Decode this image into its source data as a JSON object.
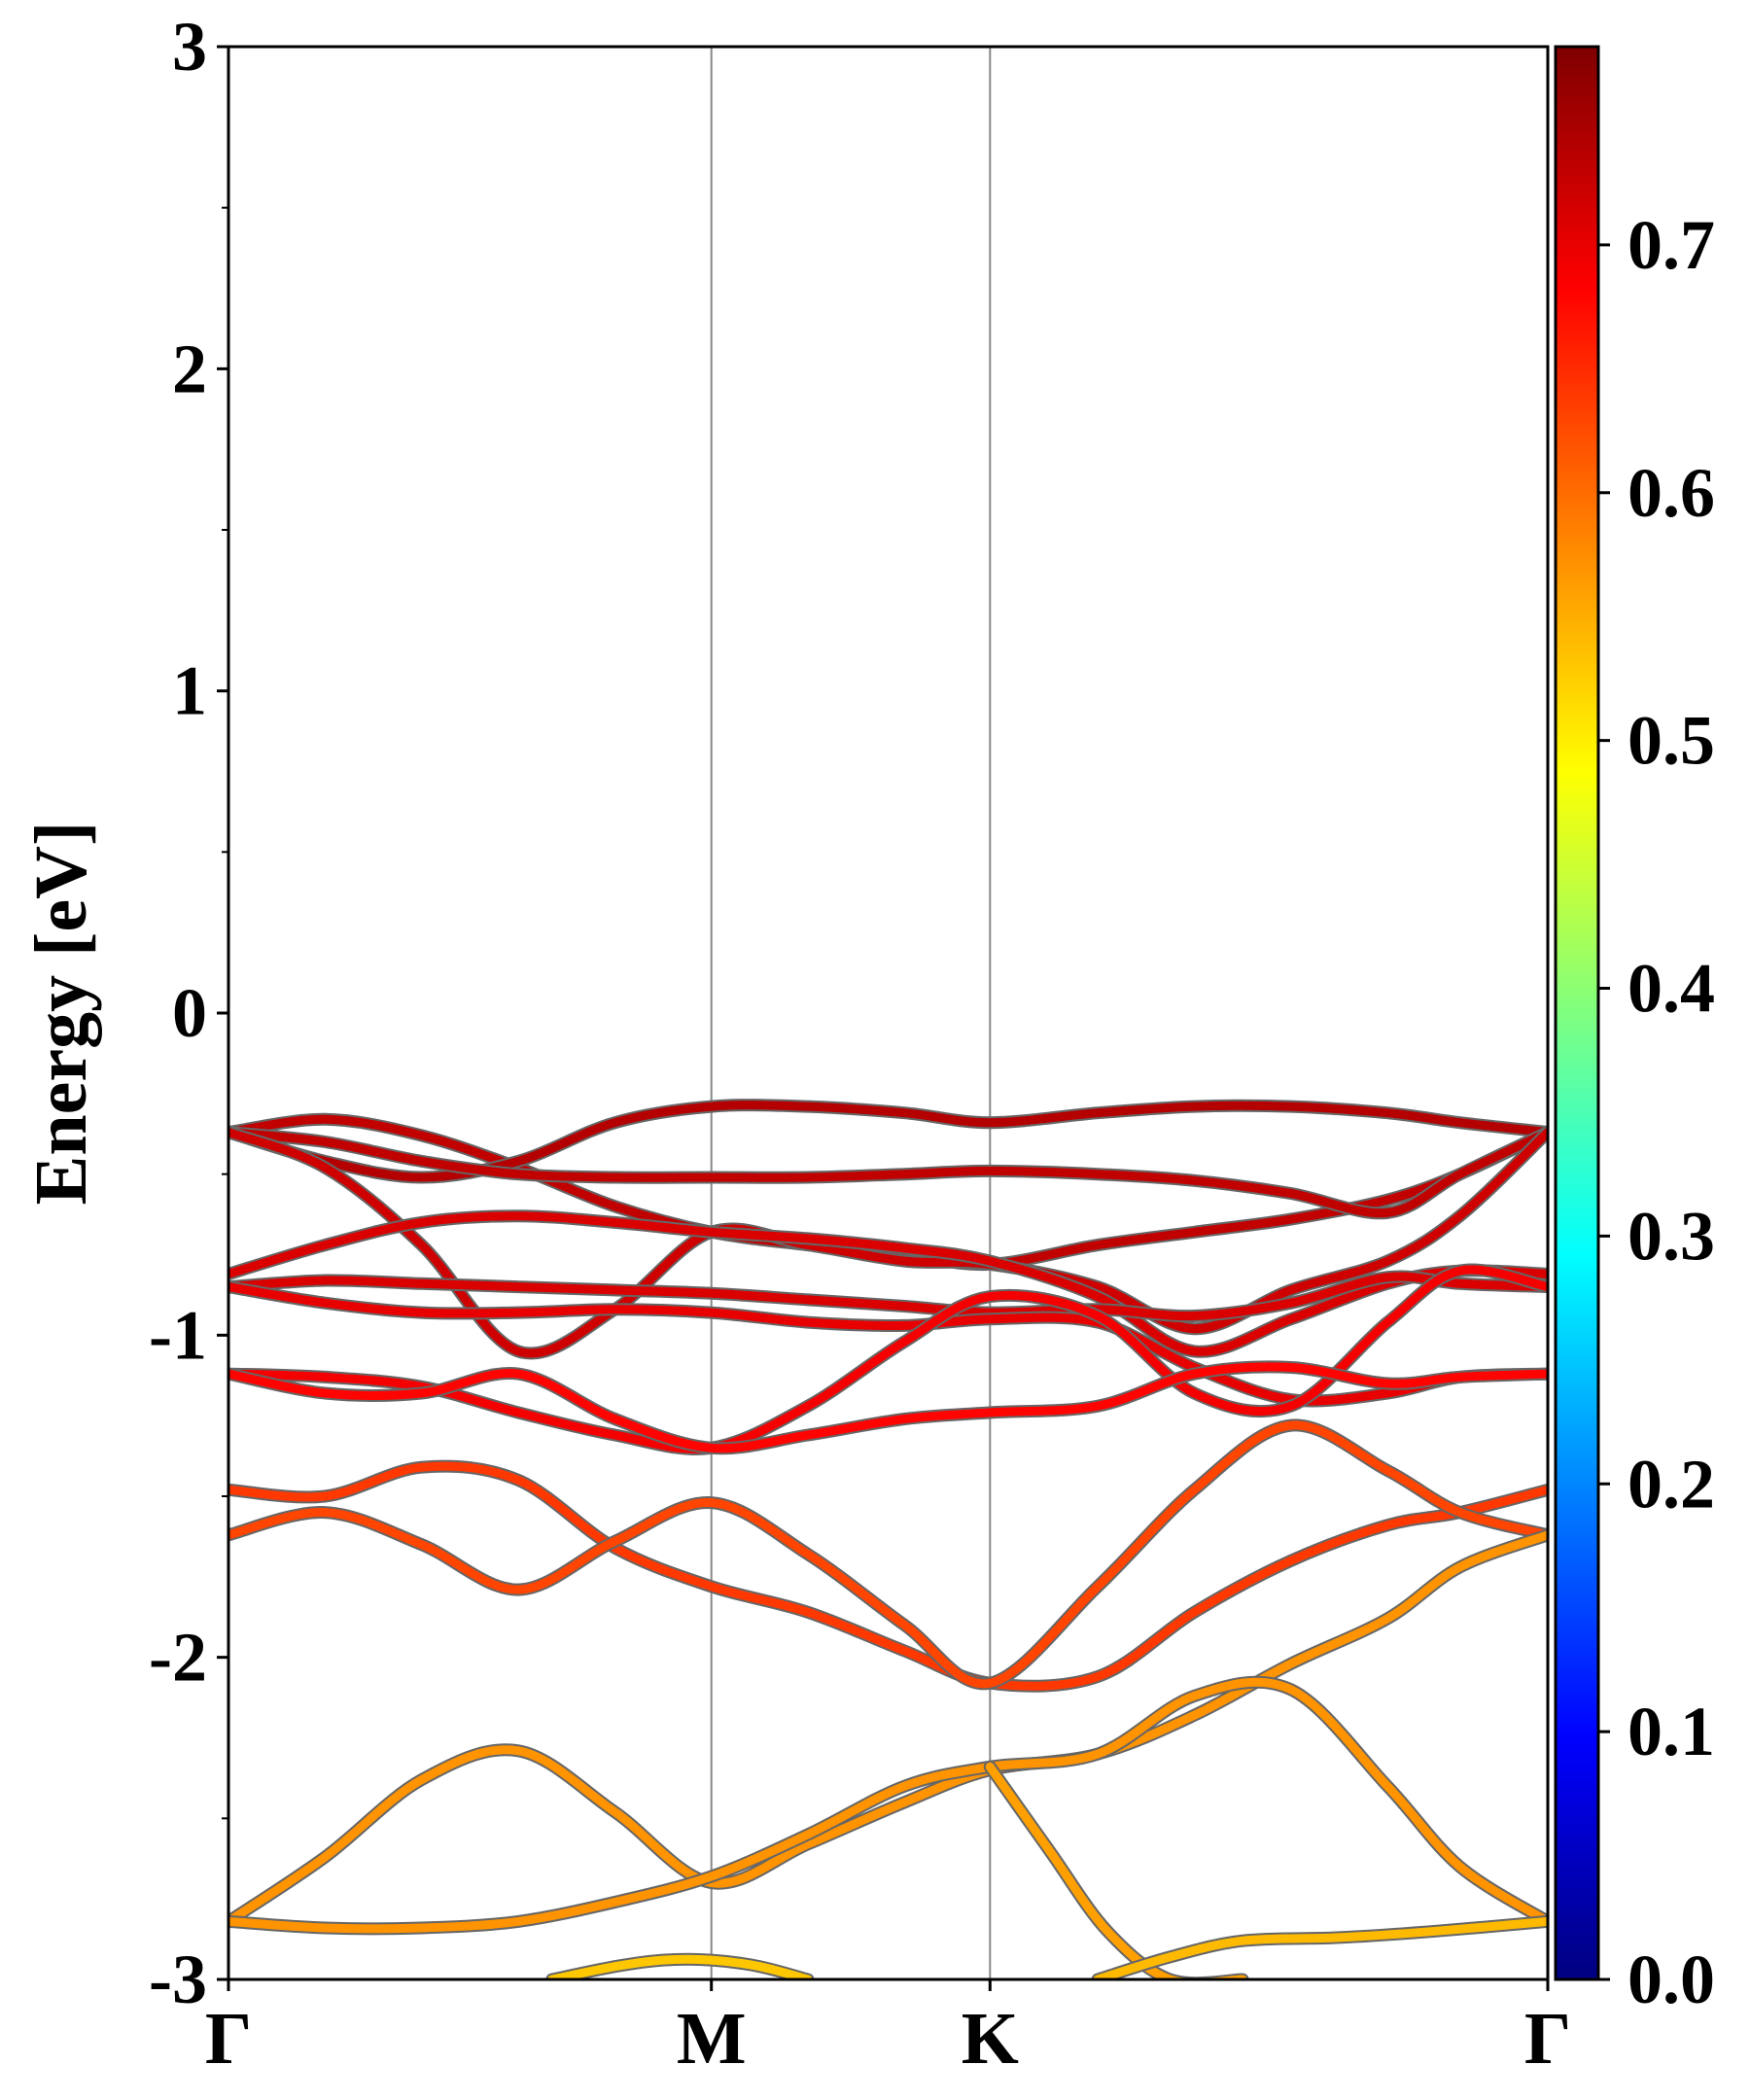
{
  "chart_data": {
    "type": "line",
    "ylabel": "Energy [eV]",
    "xlabel": "",
    "title": "",
    "ylim": [
      -3,
      3
    ],
    "y_ticks": [
      "-3",
      "-2",
      "-1",
      "0",
      "1",
      "2",
      "3"
    ],
    "k_labels": [
      "Γ",
      "M",
      "K",
      "Γ"
    ],
    "k_positions": [
      0.0,
      1.0,
      1.577,
      2.732
    ],
    "xlim": [
      0.0,
      2.732
    ],
    "colorbar": {
      "colormap": "jet",
      "range": [
        0.0,
        0.78
      ],
      "ticks": [
        "0.0",
        "0.1",
        "0.2",
        "0.3",
        "0.4",
        "0.5",
        "0.6",
        "0.7"
      ]
    },
    "series": [
      {
        "x": [
          0,
          0.2,
          0.4,
          0.6,
          0.8,
          1.0,
          1.2,
          1.4,
          1.577,
          1.8,
          2.0,
          2.2,
          2.4,
          2.55,
          2.732
        ],
        "y": [
          -0.37,
          -0.33,
          -0.38,
          -0.48,
          -0.6,
          -0.68,
          -0.72,
          -0.75,
          -0.78,
          -0.72,
          -0.68,
          -0.64,
          -0.58,
          -0.5,
          -0.37
        ],
        "weight": 0.73
      },
      {
        "x": [
          0,
          0.2,
          0.4,
          0.6,
          0.8,
          1.0,
          1.2,
          1.4,
          1.577,
          1.8,
          2.0,
          2.2,
          2.4,
          2.55,
          2.732
        ],
        "y": [
          -0.37,
          -0.46,
          -0.51,
          -0.46,
          -0.34,
          -0.29,
          -0.29,
          -0.31,
          -0.34,
          -0.31,
          -0.29,
          -0.29,
          -0.31,
          -0.34,
          -0.37
        ],
        "weight": 0.74
      },
      {
        "x": [
          0,
          0.2,
          0.4,
          0.6,
          0.8,
          1.0,
          1.2,
          1.4,
          1.577,
          1.8,
          2.0,
          2.2,
          2.4,
          2.55,
          2.732
        ],
        "y": [
          -0.37,
          -0.4,
          -0.46,
          -0.5,
          -0.51,
          -0.51,
          -0.51,
          -0.5,
          -0.49,
          -0.5,
          -0.52,
          -0.56,
          -0.62,
          -0.5,
          -0.37
        ],
        "weight": 0.73
      },
      {
        "x": [
          0,
          0.2,
          0.4,
          0.6,
          0.8,
          1.0,
          1.2,
          1.4,
          1.577,
          1.8,
          2.0,
          2.2,
          2.4,
          2.55,
          2.732
        ],
        "y": [
          -0.37,
          -0.48,
          -0.72,
          -1.05,
          -0.92,
          -0.68,
          -0.72,
          -0.77,
          -0.78,
          -0.85,
          -0.98,
          -0.86,
          -0.77,
          -0.63,
          -0.37
        ],
        "weight": 0.72
      },
      {
        "x": [
          0,
          0.2,
          0.4,
          0.6,
          0.8,
          1.0,
          1.2,
          1.4,
          1.577,
          1.8,
          2.0,
          2.2,
          2.4,
          2.55,
          2.732
        ],
        "y": [
          -0.81,
          -0.72,
          -0.65,
          -0.63,
          -0.65,
          -0.68,
          -0.7,
          -0.73,
          -0.77,
          -0.88,
          -1.05,
          -0.95,
          -0.84,
          -0.8,
          -0.81
        ],
        "weight": 0.71
      },
      {
        "x": [
          0,
          0.2,
          0.4,
          0.6,
          0.8,
          1.0,
          1.2,
          1.4,
          1.577,
          1.8,
          2.0,
          2.2,
          2.4,
          2.55,
          2.732
        ],
        "y": [
          -0.85,
          -0.83,
          -0.84,
          -0.85,
          -0.86,
          -0.87,
          -0.89,
          -0.91,
          -0.93,
          -0.92,
          -0.94,
          -0.9,
          -0.82,
          -0.84,
          -0.85
        ],
        "weight": 0.71
      },
      {
        "x": [
          0,
          0.2,
          0.4,
          0.6,
          0.8,
          1.0,
          1.2,
          1.4,
          1.577,
          1.8,
          2.0,
          2.2,
          2.4,
          2.55,
          2.732
        ],
        "y": [
          -0.85,
          -0.9,
          -0.93,
          -0.93,
          -0.92,
          -0.93,
          -0.96,
          -0.97,
          -0.95,
          -0.96,
          -1.1,
          -1.2,
          -1.18,
          -1.13,
          -1.12
        ],
        "weight": 0.7
      },
      {
        "x": [
          0,
          0.2,
          0.4,
          0.6,
          0.8,
          1.0,
          1.2,
          1.4,
          1.577,
          1.8,
          2.0,
          2.2,
          2.4,
          2.55,
          2.732
        ],
        "y": [
          -1.12,
          -1.13,
          -1.16,
          -1.24,
          -1.31,
          -1.35,
          -1.22,
          -1.02,
          -0.88,
          -0.94,
          -1.18,
          -1.22,
          -0.96,
          -0.8,
          -0.85
        ],
        "weight": 0.69
      },
      {
        "x": [
          0,
          0.2,
          0.4,
          0.6,
          0.8,
          1.0,
          1.2,
          1.4,
          1.577,
          1.8,
          2.0,
          2.2,
          2.4,
          2.55,
          2.732
        ],
        "y": [
          -1.12,
          -1.18,
          -1.18,
          -1.12,
          -1.26,
          -1.35,
          -1.31,
          -1.26,
          -1.24,
          -1.22,
          -1.12,
          -1.1,
          -1.15,
          -1.13,
          -1.12
        ],
        "weight": 0.68
      },
      {
        "x": [
          0,
          0.2,
          0.4,
          0.6,
          0.8,
          1.0,
          1.2,
          1.4,
          1.577,
          1.8,
          2.0,
          2.2,
          2.4,
          2.55,
          2.732
        ],
        "y": [
          -1.48,
          -1.5,
          -1.41,
          -1.45,
          -1.66,
          -1.78,
          -1.86,
          -1.98,
          -2.08,
          -2.06,
          -1.86,
          -1.7,
          -1.59,
          -1.55,
          -1.48
        ],
        "weight": 0.64
      },
      {
        "x": [
          0,
          0.2,
          0.4,
          0.6,
          0.8,
          1.0,
          1.2,
          1.4,
          1.577,
          1.8,
          2.0,
          2.2,
          2.4,
          2.55,
          2.732
        ],
        "y": [
          -1.62,
          -1.55,
          -1.65,
          -1.79,
          -1.64,
          -1.52,
          -1.68,
          -1.9,
          -2.08,
          -1.78,
          -1.48,
          -1.28,
          -1.42,
          -1.55,
          -1.62
        ],
        "weight": 0.63
      },
      {
        "x": [
          0,
          0.2,
          0.4,
          0.6,
          0.8,
          1.0,
          1.2,
          1.4,
          1.577,
          1.8,
          2.0,
          2.2,
          2.4,
          2.55,
          2.732
        ],
        "y": [
          -2.82,
          -2.62,
          -2.38,
          -2.29,
          -2.48,
          -2.7,
          -2.58,
          -2.45,
          -2.35,
          -2.3,
          -2.18,
          -2.02,
          -1.88,
          -1.72,
          -1.62
        ],
        "weight": 0.57
      },
      {
        "x": [
          0,
          0.2,
          0.4,
          0.6,
          0.8,
          1.0,
          1.2,
          1.4,
          1.577,
          1.8,
          2.0,
          2.2,
          2.4,
          2.55,
          2.732
        ],
        "y": [
          -2.82,
          -2.84,
          -2.84,
          -2.82,
          -2.76,
          -2.68,
          -2.55,
          -2.4,
          -2.34,
          -2.3,
          -2.12,
          -2.1,
          -2.4,
          -2.65,
          -2.82
        ],
        "weight": 0.57
      },
      {
        "x": [
          0.67,
          0.8,
          0.9,
          1.0,
          1.1,
          1.2
        ],
        "y": [
          -3.0,
          -2.96,
          -2.94,
          -2.94,
          -2.96,
          -3.0
        ],
        "weight": 0.53
      },
      {
        "x": [
          1.577,
          1.7,
          1.82,
          1.95,
          2.1
        ],
        "y": [
          -2.34,
          -2.6,
          -2.85,
          -3.0,
          -3.0
        ],
        "weight": 0.56
      },
      {
        "x": [
          1.8,
          1.95,
          2.1,
          2.3,
          2.5,
          2.732
        ],
        "y": [
          -3.0,
          -2.93,
          -2.88,
          -2.87,
          -2.85,
          -2.82
        ],
        "weight": 0.54
      }
    ]
  }
}
